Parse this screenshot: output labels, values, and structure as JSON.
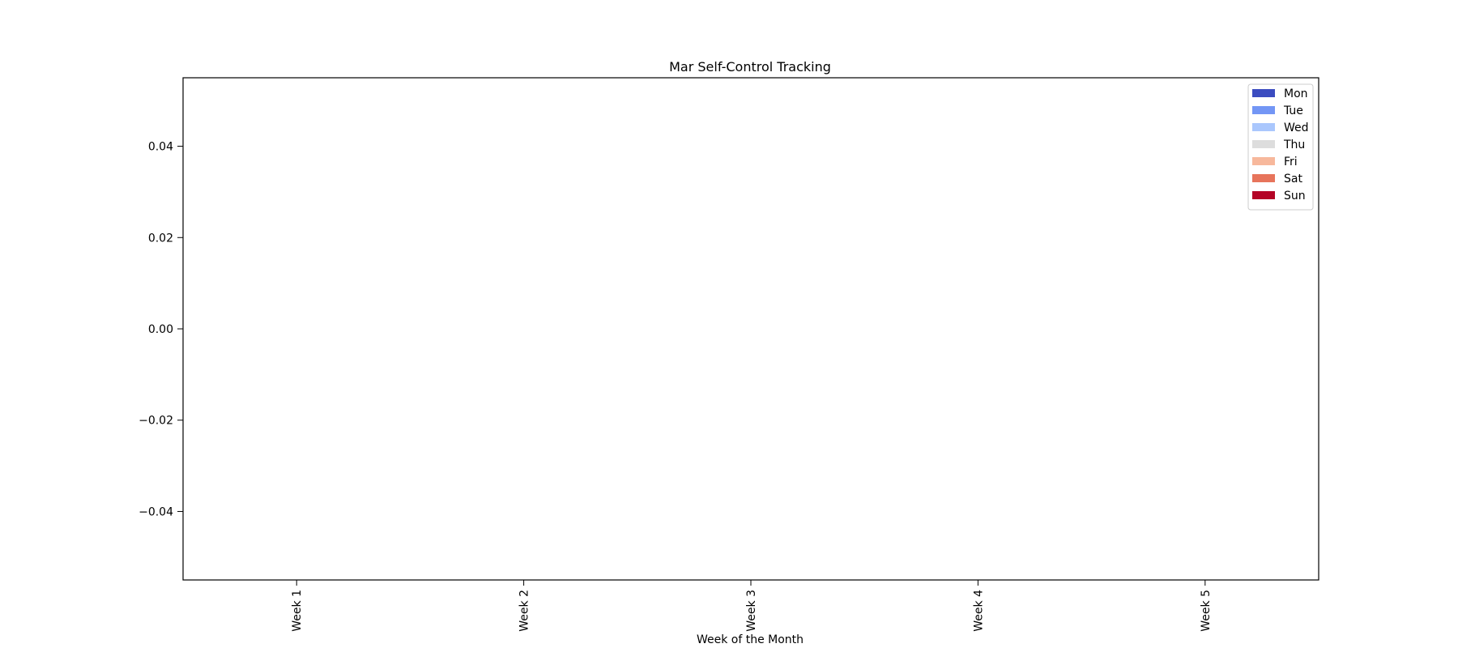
{
  "chart_data": {
    "type": "bar",
    "stacked": true,
    "title": "Mar Self-Control Tracking",
    "xlabel": "Week of the Month",
    "ylabel": "",
    "categories": [
      "Week 1",
      "Week 2",
      "Week 3",
      "Week 4",
      "Week 5"
    ],
    "ylim": [
      -0.055,
      0.055
    ],
    "yticks": [
      -0.04,
      -0.02,
      0.0,
      0.02,
      0.04
    ],
    "ytick_labels": [
      "−0.04",
      "−0.02",
      "0.00",
      "0.02",
      "0.04"
    ],
    "xtick_rotation": "vertical",
    "grid": false,
    "legend_position": "top-right",
    "series": [
      {
        "name": "Mon",
        "color": "#3b4cc0",
        "values": [
          0,
          0,
          0,
          0,
          0
        ]
      },
      {
        "name": "Tue",
        "color": "#7396f5",
        "values": [
          0,
          0,
          0,
          0,
          0
        ]
      },
      {
        "name": "Wed",
        "color": "#aac7fd",
        "values": [
          0,
          0,
          0,
          0,
          0
        ]
      },
      {
        "name": "Thu",
        "color": "#dddddd",
        "values": [
          0,
          0,
          0,
          0,
          0
        ]
      },
      {
        "name": "Fri",
        "color": "#f7b89c",
        "values": [
          0,
          0,
          0,
          0,
          0
        ]
      },
      {
        "name": "Sat",
        "color": "#e7745b",
        "values": [
          0,
          0,
          0,
          0,
          0
        ]
      },
      {
        "name": "Sun",
        "color": "#b40426",
        "values": [
          0,
          0,
          0,
          0,
          0
        ]
      }
    ]
  }
}
